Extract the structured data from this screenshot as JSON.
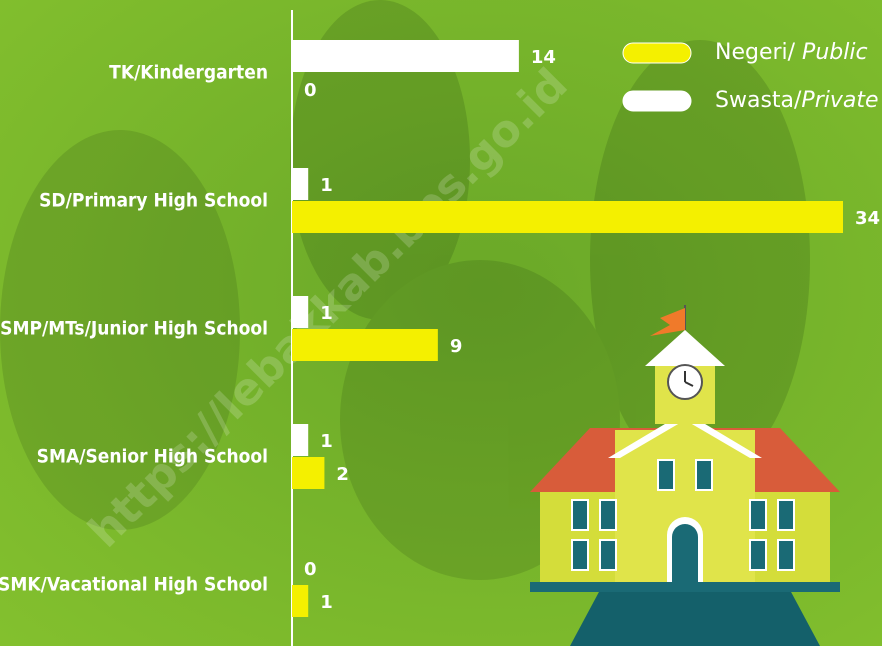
{
  "chart_data": {
    "type": "bar",
    "categories": [
      "TK/Kindergarten",
      "SD/Primary High School",
      "SMP/MTs/Junior High School",
      "SMA/Senior High School",
      "SMK/Vacational High School"
    ],
    "series": [
      {
        "name": "Swasta/Private",
        "color": "#ffffff",
        "values": [
          14,
          1,
          1,
          1,
          0
        ]
      },
      {
        "name": "Negeri/ Public",
        "color": "#f4f000",
        "values": [
          0,
          34,
          9,
          2,
          1
        ]
      }
    ],
    "legend": "top-right",
    "watermark": "https://lebakkab.bps.go.id"
  }
}
